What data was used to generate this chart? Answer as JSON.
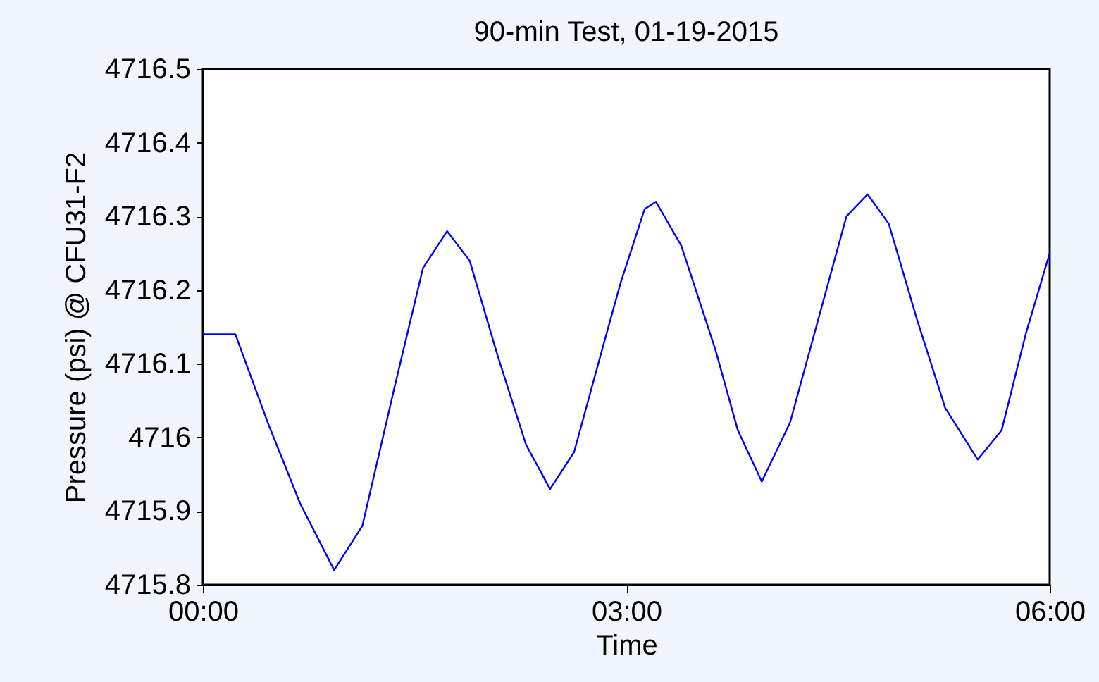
{
  "chart_data": {
    "type": "line",
    "title": "90-min Test, 01-19-2015",
    "xlabel": "Time",
    "ylabel": "Pressure (psi) @ CFU31-F2",
    "x": [
      0,
      0.23,
      0.46,
      0.69,
      0.93,
      1.13,
      1.36,
      1.56,
      1.73,
      1.89,
      2.09,
      2.29,
      2.46,
      2.63,
      2.83,
      2.96,
      3.13,
      3.21,
      3.39,
      3.63,
      3.79,
      3.96,
      4.16,
      4.36,
      4.56,
      4.71,
      4.86,
      5.06,
      5.26,
      5.49,
      5.66,
      5.83,
      6.0
    ],
    "series": [
      {
        "color": "#0000ff",
        "values": [
          4716.14,
          4716.14,
          4716.02,
          4715.91,
          4715.82,
          4715.88,
          4716.07,
          4716.23,
          4716.28,
          4716.24,
          4716.11,
          4715.99,
          4715.93,
          4715.98,
          4716.12,
          4716.21,
          4716.31,
          4716.32,
          4716.26,
          4716.12,
          4716.01,
          4715.94,
          4716.02,
          4716.16,
          4716.3,
          4716.33,
          4716.29,
          4716.16,
          4716.04,
          4715.97,
          4716.01,
          4716.14,
          4716.25
        ]
      }
    ],
    "xlim": [
      0,
      6
    ],
    "xticks": [
      {
        "value": 0,
        "label": "00:00"
      },
      {
        "value": 3,
        "label": "03:00"
      },
      {
        "value": 6,
        "label": "06:00"
      }
    ],
    "ylim": [
      4715.8,
      4716.5
    ],
    "yticks": [
      4715.8,
      4715.9,
      {
        "value": 4716.0,
        "label": "4716"
      },
      4716.1,
      4716.2,
      4716.3,
      4716.4,
      4716.5
    ],
    "grid": false,
    "marker": "none",
    "line_style": "solid"
  }
}
